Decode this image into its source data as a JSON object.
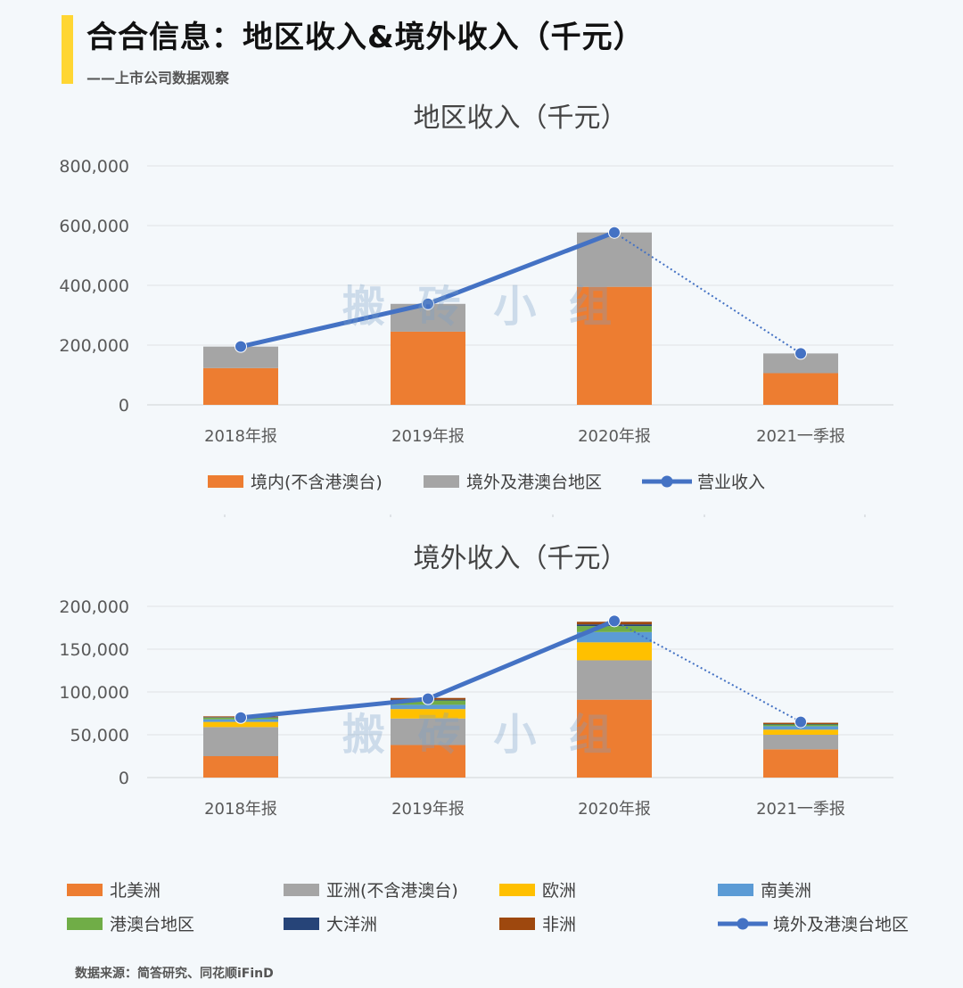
{
  "header": {
    "title": "合合信息：地区收入&境外收入（千元）",
    "subtitle": "——上市公司数据观察"
  },
  "watermark": "搬 砖 小 组",
  "source": "数据来源：简答研究、同花顺iFinD",
  "chart_data": [
    {
      "type": "bar",
      "stacked": true,
      "title": "地区收入（千元）",
      "categories": [
        "2018年报",
        "2019年报",
        "2020年报",
        "2021一季报"
      ],
      "ylim": [
        0,
        800000
      ],
      "yticks": [
        "0",
        "200,000",
        "400,000",
        "600,000",
        "800,000"
      ],
      "grid": true,
      "legend_position": "bottom",
      "series": [
        {
          "name": "境内(不含港澳台)",
          "type": "bar",
          "color": "#ed7d31",
          "values": [
            123000,
            245000,
            395000,
            106000
          ]
        },
        {
          "name": "境外及港澳台地区",
          "type": "bar",
          "color": "#a5a5a5",
          "values": [
            72000,
            93000,
            182000,
            66000
          ]
        },
        {
          "name": "营业收入",
          "type": "line",
          "color": "#4472c4",
          "values": [
            195000,
            338000,
            577000,
            172000
          ],
          "last_segment_dotted": true
        }
      ]
    },
    {
      "type": "bar",
      "stacked": true,
      "title": "境外收入（千元）",
      "categories": [
        "2018年报",
        "2019年报",
        "2020年报",
        "2021一季报"
      ],
      "ylim": [
        0,
        200000
      ],
      "yticks": [
        "0",
        "50,000",
        "100,000",
        "150,000",
        "200,000"
      ],
      "grid": true,
      "legend_position": "bottom",
      "series": [
        {
          "name": "北美洲",
          "type": "bar",
          "color": "#ed7d31",
          "values": [
            25000,
            38000,
            91000,
            33000
          ]
        },
        {
          "name": "亚洲(不含港澳台)",
          "type": "bar",
          "color": "#a5a5a5",
          "values": [
            34000,
            31000,
            46000,
            17000
          ]
        },
        {
          "name": "欧洲",
          "type": "bar",
          "color": "#ffc000",
          "values": [
            6000,
            11000,
            21000,
            6000
          ]
        },
        {
          "name": "南美洲",
          "type": "bar",
          "color": "#5b9bd5",
          "values": [
            3000,
            5000,
            12000,
            4000
          ]
        },
        {
          "name": "港澳台地区",
          "type": "bar",
          "color": "#70ad47",
          "values": [
            2000,
            5000,
            7000,
            2000
          ]
        },
        {
          "name": "大洋洲",
          "type": "bar",
          "color": "#264478",
          "values": [
            500,
            1000,
            2000,
            500
          ]
        },
        {
          "name": "非洲",
          "type": "bar",
          "color": "#9e480e",
          "values": [
            1000,
            2000,
            3000,
            1500
          ]
        },
        {
          "name": "境外及港澳台地区",
          "type": "line",
          "color": "#4472c4",
          "values": [
            70000,
            92000,
            183000,
            65000
          ],
          "last_segment_dotted": true
        }
      ]
    }
  ]
}
